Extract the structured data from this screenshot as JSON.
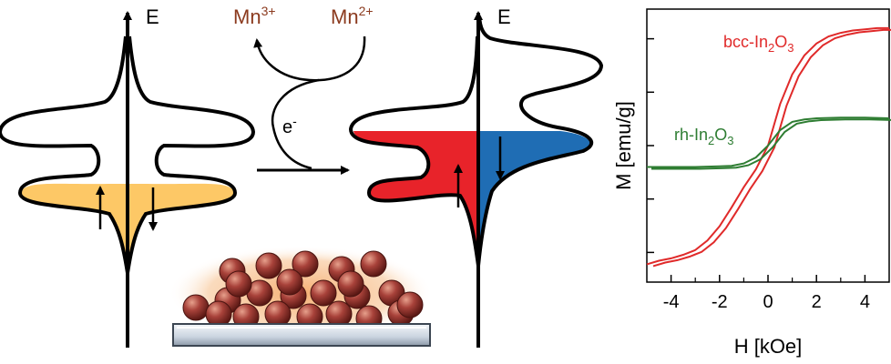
{
  "left_dos": {
    "energy_label": "E",
    "fill_color": "#fdc866"
  },
  "center": {
    "mn3": "Mn",
    "mn3_sup": "3+",
    "mn2": "Mn",
    "mn2_sup": "2+",
    "electron": "e",
    "electron_sup": "-",
    "text_color": "#8b3a1e"
  },
  "right_dos": {
    "energy_label": "E",
    "spin_up_color": "#e8232a",
    "spin_down_color": "#1f6db4"
  },
  "substrate": {
    "particle_color": "#a8423a",
    "halo_color": "#f4a15a"
  },
  "chart_data": {
    "type": "line",
    "xlabel": "H [kOe]",
    "ylabel": "M [emu/g]",
    "xlim": [
      -5,
      5
    ],
    "x_ticks": [
      "-4",
      "-2",
      "0",
      "2",
      "4"
    ],
    "y_tick_labels": "none",
    "grid": false,
    "series": [
      {
        "name": "bcc-In2O3",
        "name_parts": [
          "bcc-In",
          "2",
          "O",
          "3"
        ],
        "color": "#e02a2a",
        "x": [
          -5,
          -4.5,
          -4,
          -3.5,
          -3,
          -2.5,
          -2,
          -1.5,
          -1,
          -0.5,
          0,
          0.5,
          1,
          1.5,
          2,
          2.5,
          3,
          3.5,
          4,
          4.5,
          5
        ],
        "y": [
          -1.0,
          -0.97,
          -0.95,
          -0.92,
          -0.88,
          -0.8,
          -0.68,
          -0.52,
          -0.35,
          -0.2,
          0.0,
          0.35,
          0.6,
          0.76,
          0.86,
          0.92,
          0.95,
          0.97,
          0.98,
          0.99,
          0.99
        ]
      },
      {
        "name": "rh-In2O3",
        "name_parts": [
          "rh-In",
          "2",
          "O",
          "3"
        ],
        "color": "#2e7d32",
        "x": [
          -5,
          -4,
          -3,
          -2,
          -1.5,
          -1,
          -0.5,
          0,
          0.5,
          1,
          1.5,
          2,
          3,
          4,
          5
        ],
        "y": [
          -0.18,
          -0.18,
          -0.18,
          -0.175,
          -0.17,
          -0.15,
          -0.1,
          0.0,
          0.13,
          0.2,
          0.22,
          0.23,
          0.235,
          0.235,
          0.23
        ]
      }
    ]
  }
}
